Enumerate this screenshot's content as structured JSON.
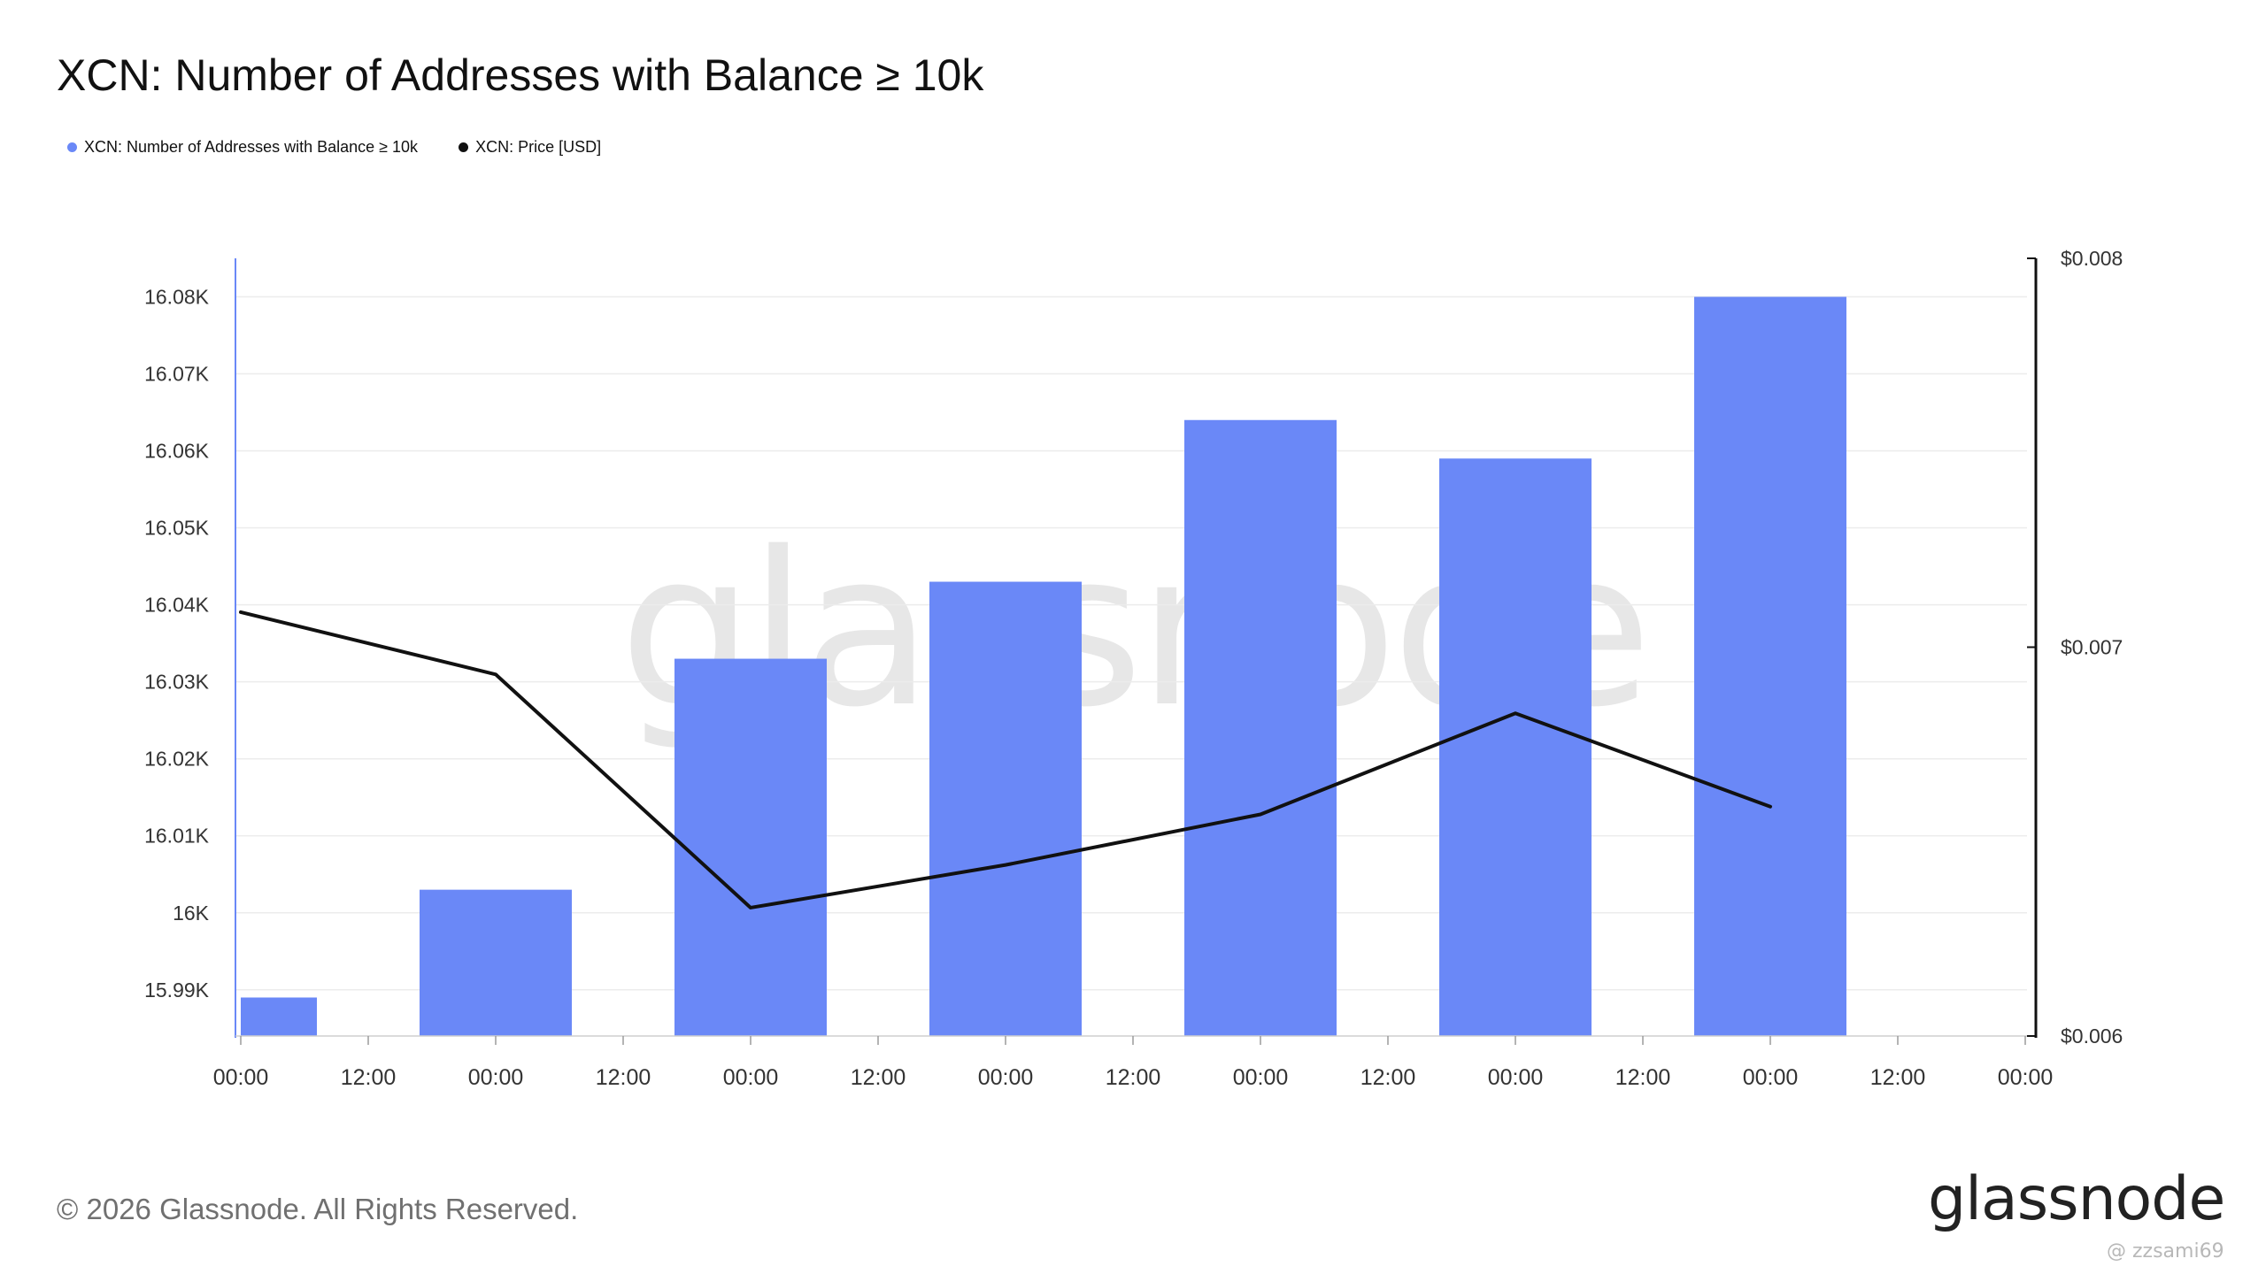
{
  "title": "XCN: Number of Addresses with Balance ≥ 10k",
  "legend": [
    {
      "label": "XCN: Number of Addresses with Balance ≥ 10k",
      "color": "#6a88f7"
    },
    {
      "label": "XCN: Price [USD]",
      "color": "#111111"
    }
  ],
  "watermark": "glassnode",
  "footer": {
    "copyright": "© 2026 Glassnode. All Rights Reserved.",
    "logo": "glassnode",
    "handle": "@ zzsami69"
  },
  "chart_data": {
    "type": "bar",
    "x_ticks": [
      "00:00",
      "12:00",
      "00:00",
      "12:00",
      "00:00",
      "12:00",
      "00:00",
      "12:00",
      "00:00",
      "12:00",
      "00:00",
      "12:00",
      "00:00",
      "12:00",
      "00:00"
    ],
    "series": [
      {
        "name": "XCN: Number of Addresses with Balance ≥ 10k",
        "type": "bar",
        "axis": "left",
        "color": "#6a88f7",
        "values": [
          15989,
          16003,
          16033,
          16043,
          16064,
          16059,
          16080
        ]
      },
      {
        "name": "XCN: Price [USD]",
        "type": "line",
        "axis": "right",
        "color": "#111111",
        "values": [
          0.00709,
          0.00693,
          0.00633,
          0.00644,
          0.00657,
          0.00683,
          0.00659
        ]
      }
    ],
    "left_axis": {
      "ticks": [
        15990,
        16000,
        16010,
        16020,
        16030,
        16040,
        16050,
        16060,
        16070,
        16080
      ],
      "tick_labels": [
        "15.99K",
        "16K",
        "16.01K",
        "16.02K",
        "16.03K",
        "16.04K",
        "16.05K",
        "16.06K",
        "16.07K",
        "16.08K"
      ],
      "range": [
        15984,
        16085
      ]
    },
    "right_axis": {
      "ticks": [
        0.006,
        0.007,
        0.008
      ],
      "tick_labels": [
        "$0.006",
        "$0.007",
        "$0.008"
      ],
      "range": [
        0.006,
        0.008
      ]
    },
    "grid": true,
    "legend_position": "top-left"
  }
}
